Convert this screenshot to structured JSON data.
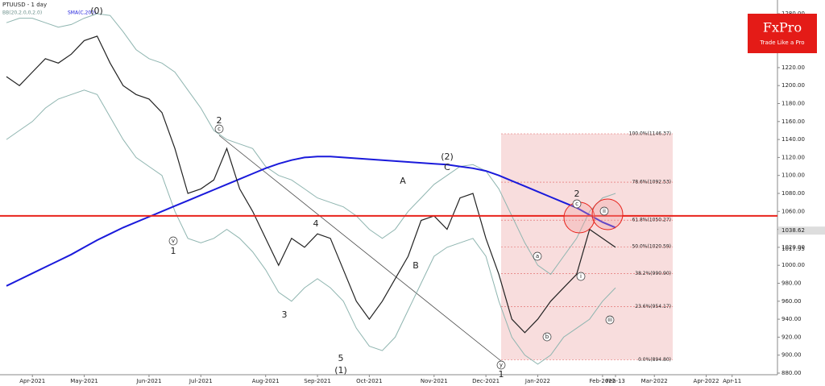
{
  "chart_data": {
    "type": "line",
    "title": "PTUUSD - 1 day",
    "logo": {
      "name": "FxPro",
      "tagline": "Trade Like a Pro"
    },
    "categories": [
      null,
      null,
      "Apr-2021",
      null,
      null,
      null,
      "May-2021",
      null,
      null,
      null,
      null,
      "Jun-2021",
      null,
      null,
      null,
      "Jul-2021",
      null,
      null,
      null,
      null,
      "Aug-2021",
      null,
      null,
      null,
      "Sep-2021",
      null,
      null,
      null,
      "Oct-2021",
      null,
      null,
      null,
      null,
      "Nov-2021",
      null,
      null,
      null,
      "Dec-2021",
      null,
      null,
      null,
      "Jan-2022",
      null,
      null,
      null,
      null,
      "Feb-2022",
      "Feb-13",
      null,
      null,
      "Mar-2022",
      null,
      null,
      null,
      "Apr-2022",
      null,
      "Apr-11",
      null,
      null,
      null
    ],
    "price": {
      "color": "#222222",
      "values": [
        1210,
        1200,
        1215,
        1230,
        1225,
        1235,
        1250,
        1255,
        1225,
        1200,
        1190,
        1185,
        1170,
        1130,
        1080,
        1085,
        1095,
        1130,
        1085,
        1060,
        1030,
        1000,
        1030,
        1020,
        1035,
        1030,
        995,
        960,
        940,
        960,
        985,
        1010,
        1050,
        1055,
        1040,
        1075,
        1080,
        1030,
        990,
        940,
        925,
        940,
        960,
        975,
        990,
        1040,
        1030,
        1020,
        null,
        null,
        null,
        null,
        null,
        null,
        null,
        null,
        null,
        null,
        null,
        null
      ]
    },
    "sma": {
      "name": "SMA(C,200)",
      "color": "#1a1adb",
      "values": [
        977,
        984,
        991,
        998,
        1005,
        1012,
        1020,
        1028,
        1035,
        1042,
        1048,
        1054,
        1060,
        1066,
        1072,
        1078,
        1084,
        1090,
        1096,
        1102,
        1108,
        1113,
        1117,
        1120,
        1121,
        1121,
        1120,
        1119,
        1118,
        1117,
        1116,
        1115,
        1114,
        1113,
        1112,
        1110,
        1108,
        1105,
        1100,
        1094,
        1088,
        1082,
        1076,
        1070,
        1064,
        1056,
        1048,
        1042,
        null,
        null,
        null,
        null,
        null,
        null,
        null,
        null,
        null,
        null,
        null,
        null
      ]
    },
    "bands": {
      "name": "BB(20,2.0,0,2.0)",
      "color": "#8fb5b0",
      "upper": [
        1270,
        1275,
        1275,
        1270,
        1265,
        1268,
        1275,
        1280,
        1278,
        1260,
        1240,
        1230,
        1225,
        1215,
        1195,
        1175,
        1150,
        1140,
        1135,
        1130,
        1110,
        1100,
        1095,
        1085,
        1075,
        1070,
        1065,
        1055,
        1040,
        1030,
        1040,
        1060,
        1075,
        1090,
        1100,
        1110,
        1112,
        1105,
        1085,
        1055,
        1025,
        1000,
        990,
        1010,
        1030,
        1060,
        1075,
        1080,
        null,
        null,
        null,
        null,
        null,
        null,
        null,
        null,
        null,
        null,
        null,
        null
      ],
      "lower": [
        1140,
        1150,
        1160,
        1175,
        1185,
        1190,
        1195,
        1190,
        1165,
        1140,
        1120,
        1110,
        1100,
        1060,
        1030,
        1025,
        1030,
        1040,
        1030,
        1015,
        995,
        970,
        960,
        975,
        985,
        975,
        960,
        930,
        910,
        905,
        920,
        950,
        980,
        1010,
        1020,
        1025,
        1030,
        1010,
        960,
        920,
        900,
        890,
        900,
        920,
        930,
        940,
        960,
        975,
        null,
        null,
        null,
        null,
        null,
        null,
        null,
        null,
        null,
        null,
        null,
        null
      ]
    },
    "resistance": {
      "value": 1055,
      "color": "#e8231c"
    },
    "fib_levels": [
      {
        "value": 1146.37,
        "label": "100.0%(1146.37)"
      },
      {
        "value": 1092.53,
        "label": "78.6%(1092.53)"
      },
      {
        "value": 1050.27,
        "label": "61.8%(1050.27)"
      },
      {
        "value": 1020.59,
        "label": "50.0%(1020.59)"
      },
      {
        "value": 990.9,
        "label": "38.2%(990.90)"
      },
      {
        "value": 954.17,
        "label": "23.6%(954.17)"
      },
      {
        "value": 894.8,
        "label": "0.0%(894.80)"
      }
    ],
    "last_price": 1038.62,
    "marker_price": 1017.95,
    "ylim": [
      880,
      1280
    ],
    "yticks": [
      {
        "value": 1280,
        "label": "1280.00"
      },
      {
        "value": 1260,
        "label": "1260.00"
      },
      {
        "value": 1240,
        "label": "1240.00"
      },
      {
        "value": 1220,
        "label": "1220.00"
      },
      {
        "value": 1200,
        "label": "1200.00"
      },
      {
        "value": 1180,
        "label": "1180.00"
      },
      {
        "value": 1160,
        "label": "1160.00"
      },
      {
        "value": 1140,
        "label": "1140.00"
      },
      {
        "value": 1120,
        "label": "1120.00"
      },
      {
        "value": 1100,
        "label": "1100.00"
      },
      {
        "value": 1080,
        "label": "1080.00"
      },
      {
        "value": 1060,
        "label": "1060.00"
      },
      {
        "value": 1040,
        "label": "1040.00"
      },
      {
        "value": 1020,
        "label": "1020.00"
      },
      {
        "value": 1000,
        "label": "1000.00"
      },
      {
        "value": 980,
        "label": "980.00"
      },
      {
        "value": 960,
        "label": "960.00"
      },
      {
        "value": 940,
        "label": "940.00"
      },
      {
        "value": 920,
        "label": "920.00"
      },
      {
        "value": 900,
        "label": "900.00"
      },
      {
        "value": 880,
        "label": "880.00"
      }
    ],
    "annotations": [
      "(0)",
      "1",
      "2",
      "4",
      "3",
      "5",
      "(1)",
      "A",
      "B",
      "(2)",
      "C",
      "1",
      "2",
      "c",
      "v",
      "y",
      "a",
      "b",
      "i",
      "ii",
      "iii",
      "c"
    ]
  }
}
